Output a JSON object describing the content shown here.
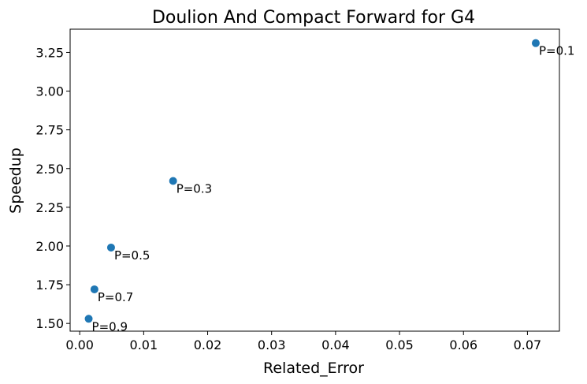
{
  "chart_data": {
    "type": "scatter",
    "title": "Doulion And Compact Forward for G4",
    "xlabel": "Related_Error",
    "ylabel": "Speedup",
    "xlim": [
      -0.0015,
      0.075
    ],
    "ylim": [
      1.45,
      3.4
    ],
    "xticks": [
      0.0,
      0.01,
      0.02,
      0.03,
      0.04,
      0.05,
      0.06,
      0.07
    ],
    "xtick_labels": [
      "0.00",
      "0.01",
      "0.02",
      "0.03",
      "0.04",
      "0.05",
      "0.06",
      "0.07"
    ],
    "yticks": [
      1.5,
      1.75,
      2.0,
      2.25,
      2.5,
      2.75,
      3.0,
      3.25
    ],
    "ytick_labels": [
      "1.50",
      "1.75",
      "2.00",
      "2.25",
      "2.50",
      "2.75",
      "3.00",
      "3.25"
    ],
    "grid": false,
    "point_color": "#1f77b4",
    "points": [
      {
        "x": 0.0713,
        "y": 3.31,
        "label": "P=0.1"
      },
      {
        "x": 0.0146,
        "y": 2.42,
        "label": "P=0.3"
      },
      {
        "x": 0.0049,
        "y": 1.99,
        "label": "P=0.5"
      },
      {
        "x": 0.0023,
        "y": 1.72,
        "label": "P=0.7"
      },
      {
        "x": 0.0014,
        "y": 1.53,
        "label": "P=0.9"
      }
    ]
  }
}
